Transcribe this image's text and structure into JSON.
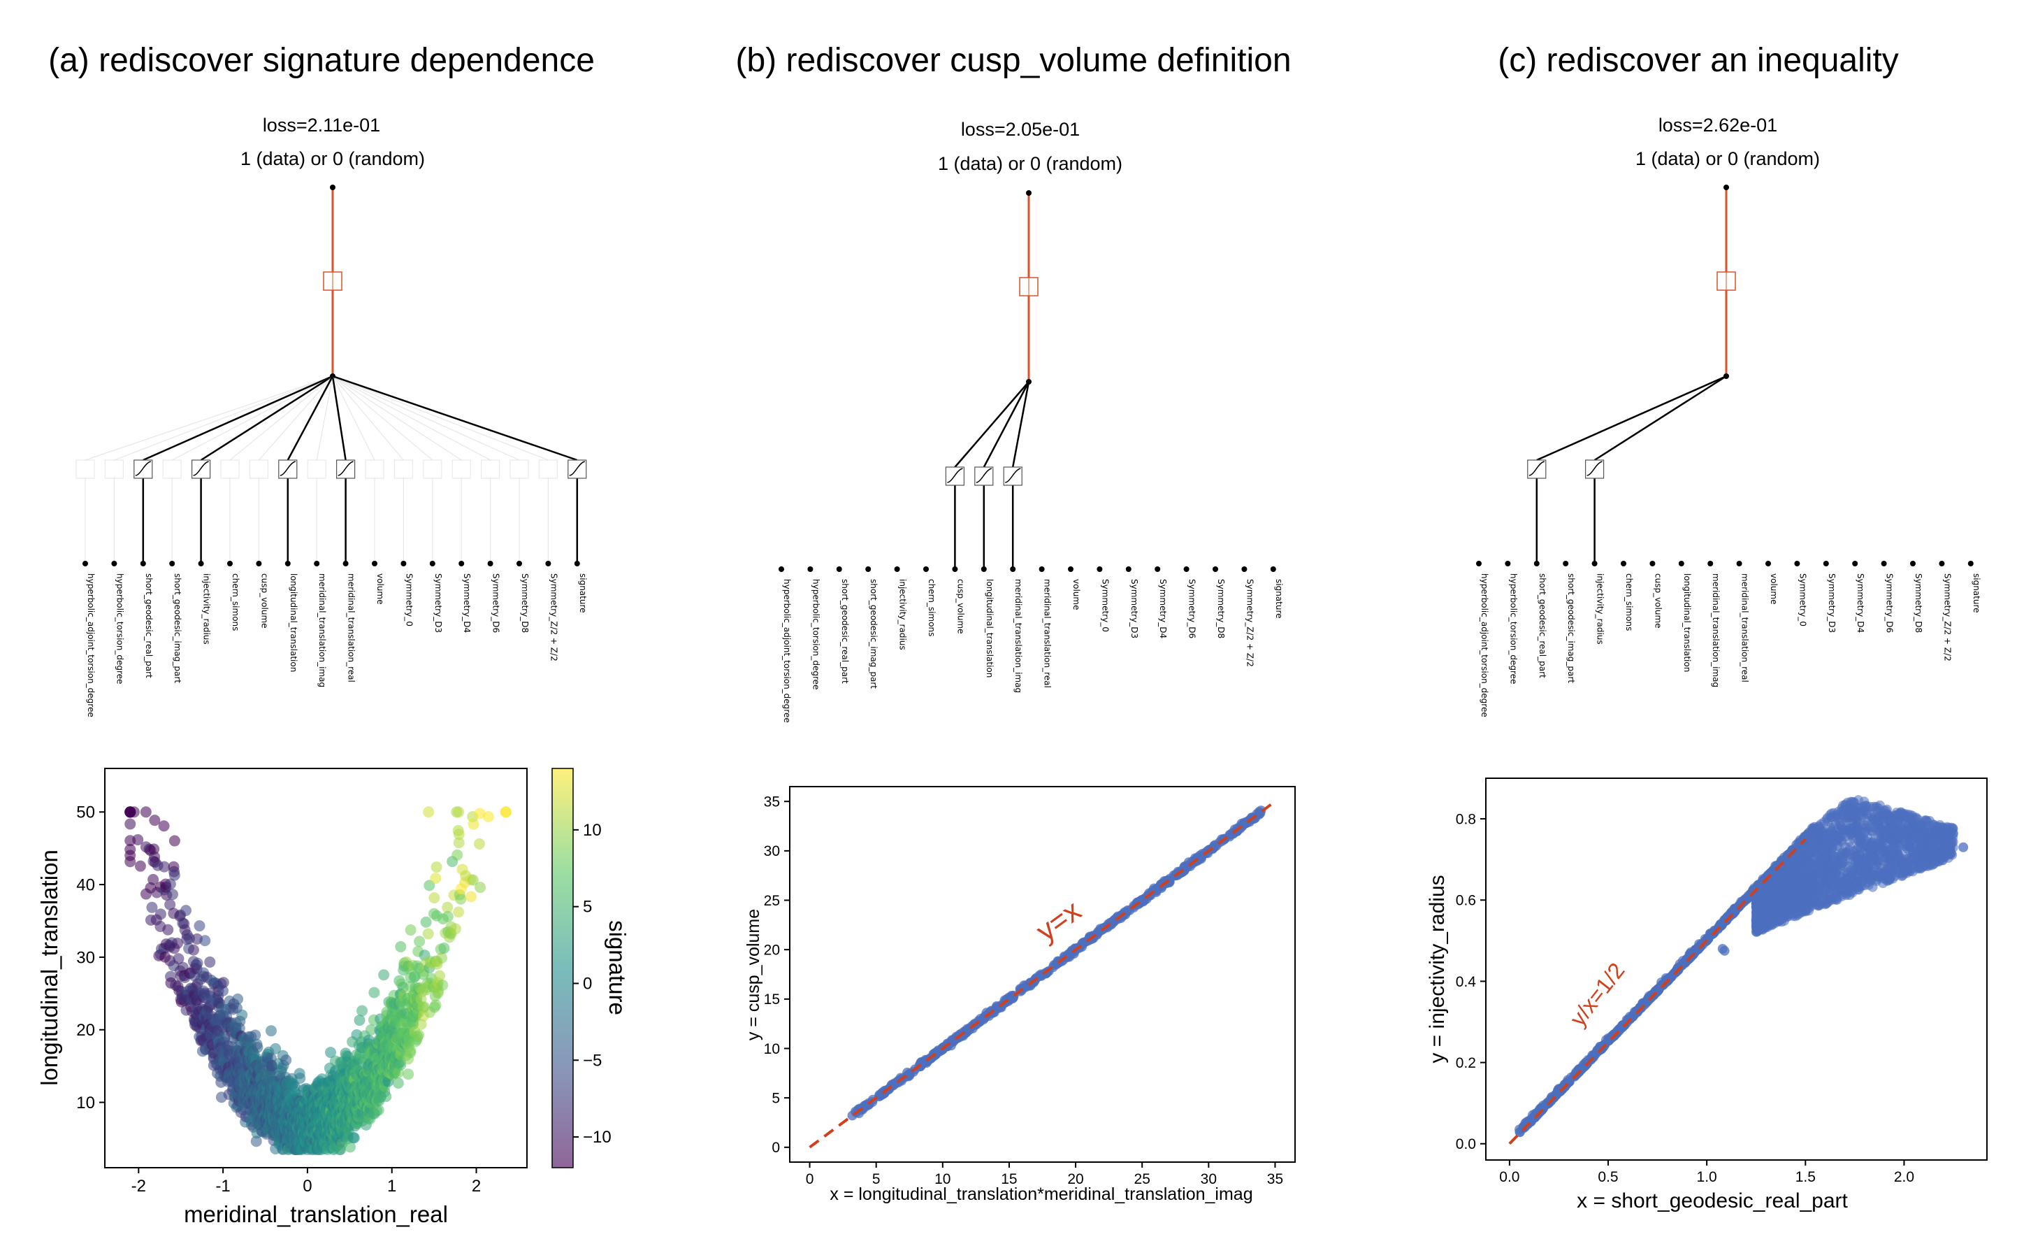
{
  "panels": [
    {
      "title": "(a) rediscover signature dependence",
      "loss": "loss=2.11e-01",
      "output_label": "1 (data) or 0 (random)",
      "active_inputs": [
        "short_geodesic_real_part",
        "injectivity_radius",
        "longitudinal_translation",
        "meridinal_translation_real",
        "signature"
      ]
    },
    {
      "title": "(b) rediscover cusp_volume definition",
      "loss": "loss=2.05e-01",
      "output_label": "1 (data) or 0 (random)",
      "active_inputs": [
        "cusp_volume",
        "longitudinal_translation",
        "meridinal_translation_imag"
      ]
    },
    {
      "title": "(c) rediscover an inequality",
      "loss": "loss=2.62e-01",
      "output_label": "1 (data) or 0 (random)",
      "active_inputs": [
        "short_geodesic_real_part",
        "injectivity_radius"
      ]
    }
  ],
  "features": [
    "hyperbolic_adjoint_torsion_degree",
    "hyperbolic_torsion_degree",
    "short_geodesic_real_part",
    "short_geodesic_imag_part",
    "injectivity_radius",
    "chern_simons",
    "cusp_volume",
    "longitudinal_translation",
    "meridinal_translation_imag",
    "meridinal_translation_real",
    "volume",
    "Symmetry_0",
    "Symmetry_D3",
    "Symmetry_D4",
    "Symmetry_D6",
    "Symmetry_D8",
    "Symmetry_Z/2 + Z/2",
    "signature"
  ],
  "colors": {
    "output_edge": "#d9532c",
    "node": "#000000",
    "scatter_blue": "#4c6fbf",
    "fit_line": "#d0401c",
    "viridis": [
      "#440154",
      "#3b528b",
      "#21918c",
      "#5ec962",
      "#fde725"
    ]
  },
  "chart_data": [
    {
      "type": "scatter",
      "xlabel": "meridinal_translation_real",
      "ylabel": "longitudinal_translation",
      "colorbar_label": "signature",
      "xlim": [
        -2.4,
        2.6
      ],
      "ylim": [
        1,
        56
      ],
      "xticks": [
        "-2",
        "-1",
        "0",
        "1",
        "2"
      ],
      "yticks": [
        "10",
        "20",
        "30",
        "40",
        "50"
      ],
      "colorbar_range": [
        -12,
        14
      ],
      "colorbar_ticks": [
        "10",
        "5",
        "0",
        "−5",
        "−10"
      ],
      "shape": "U-shaped cloud: y approximately 6 + 9*x^2 with spread; color increases with x (signature from about -12 at x=-2 to 13 at x=2)"
    },
    {
      "type": "scatter",
      "xlabel": "x = longitudinal_translation*meridinal_translation_imag",
      "ylabel": "y = cusp_volume",
      "xlim": [
        -1.5,
        36.5
      ],
      "ylim": [
        -1.5,
        36.5
      ],
      "xticks": [
        "0",
        "5",
        "10",
        "15",
        "20",
        "25",
        "30",
        "35"
      ],
      "yticks": [
        "0",
        "5",
        "10",
        "15",
        "20",
        "25",
        "30",
        "35"
      ],
      "points_x_range": [
        3.2,
        34
      ],
      "relation": "y = x",
      "annotation": "y=x"
    },
    {
      "type": "scatter",
      "xlabel": "x = short_geodesic_real_part",
      "ylabel": "y = injectivity_radius",
      "xlim": [
        -0.12,
        2.42
      ],
      "ylim": [
        -0.04,
        0.9
      ],
      "xticks": [
        "0.0",
        "0.5",
        "1.0",
        "1.5",
        "2.0"
      ],
      "yticks": [
        "0.0",
        "0.2",
        "0.4",
        "0.6",
        "0.8"
      ],
      "relation": "y = x/2 for x < 1.5, plateau fan between 0.56 and 0.86 for x in [1.2, 2.3]",
      "annotation": "y/x=1/2"
    }
  ]
}
